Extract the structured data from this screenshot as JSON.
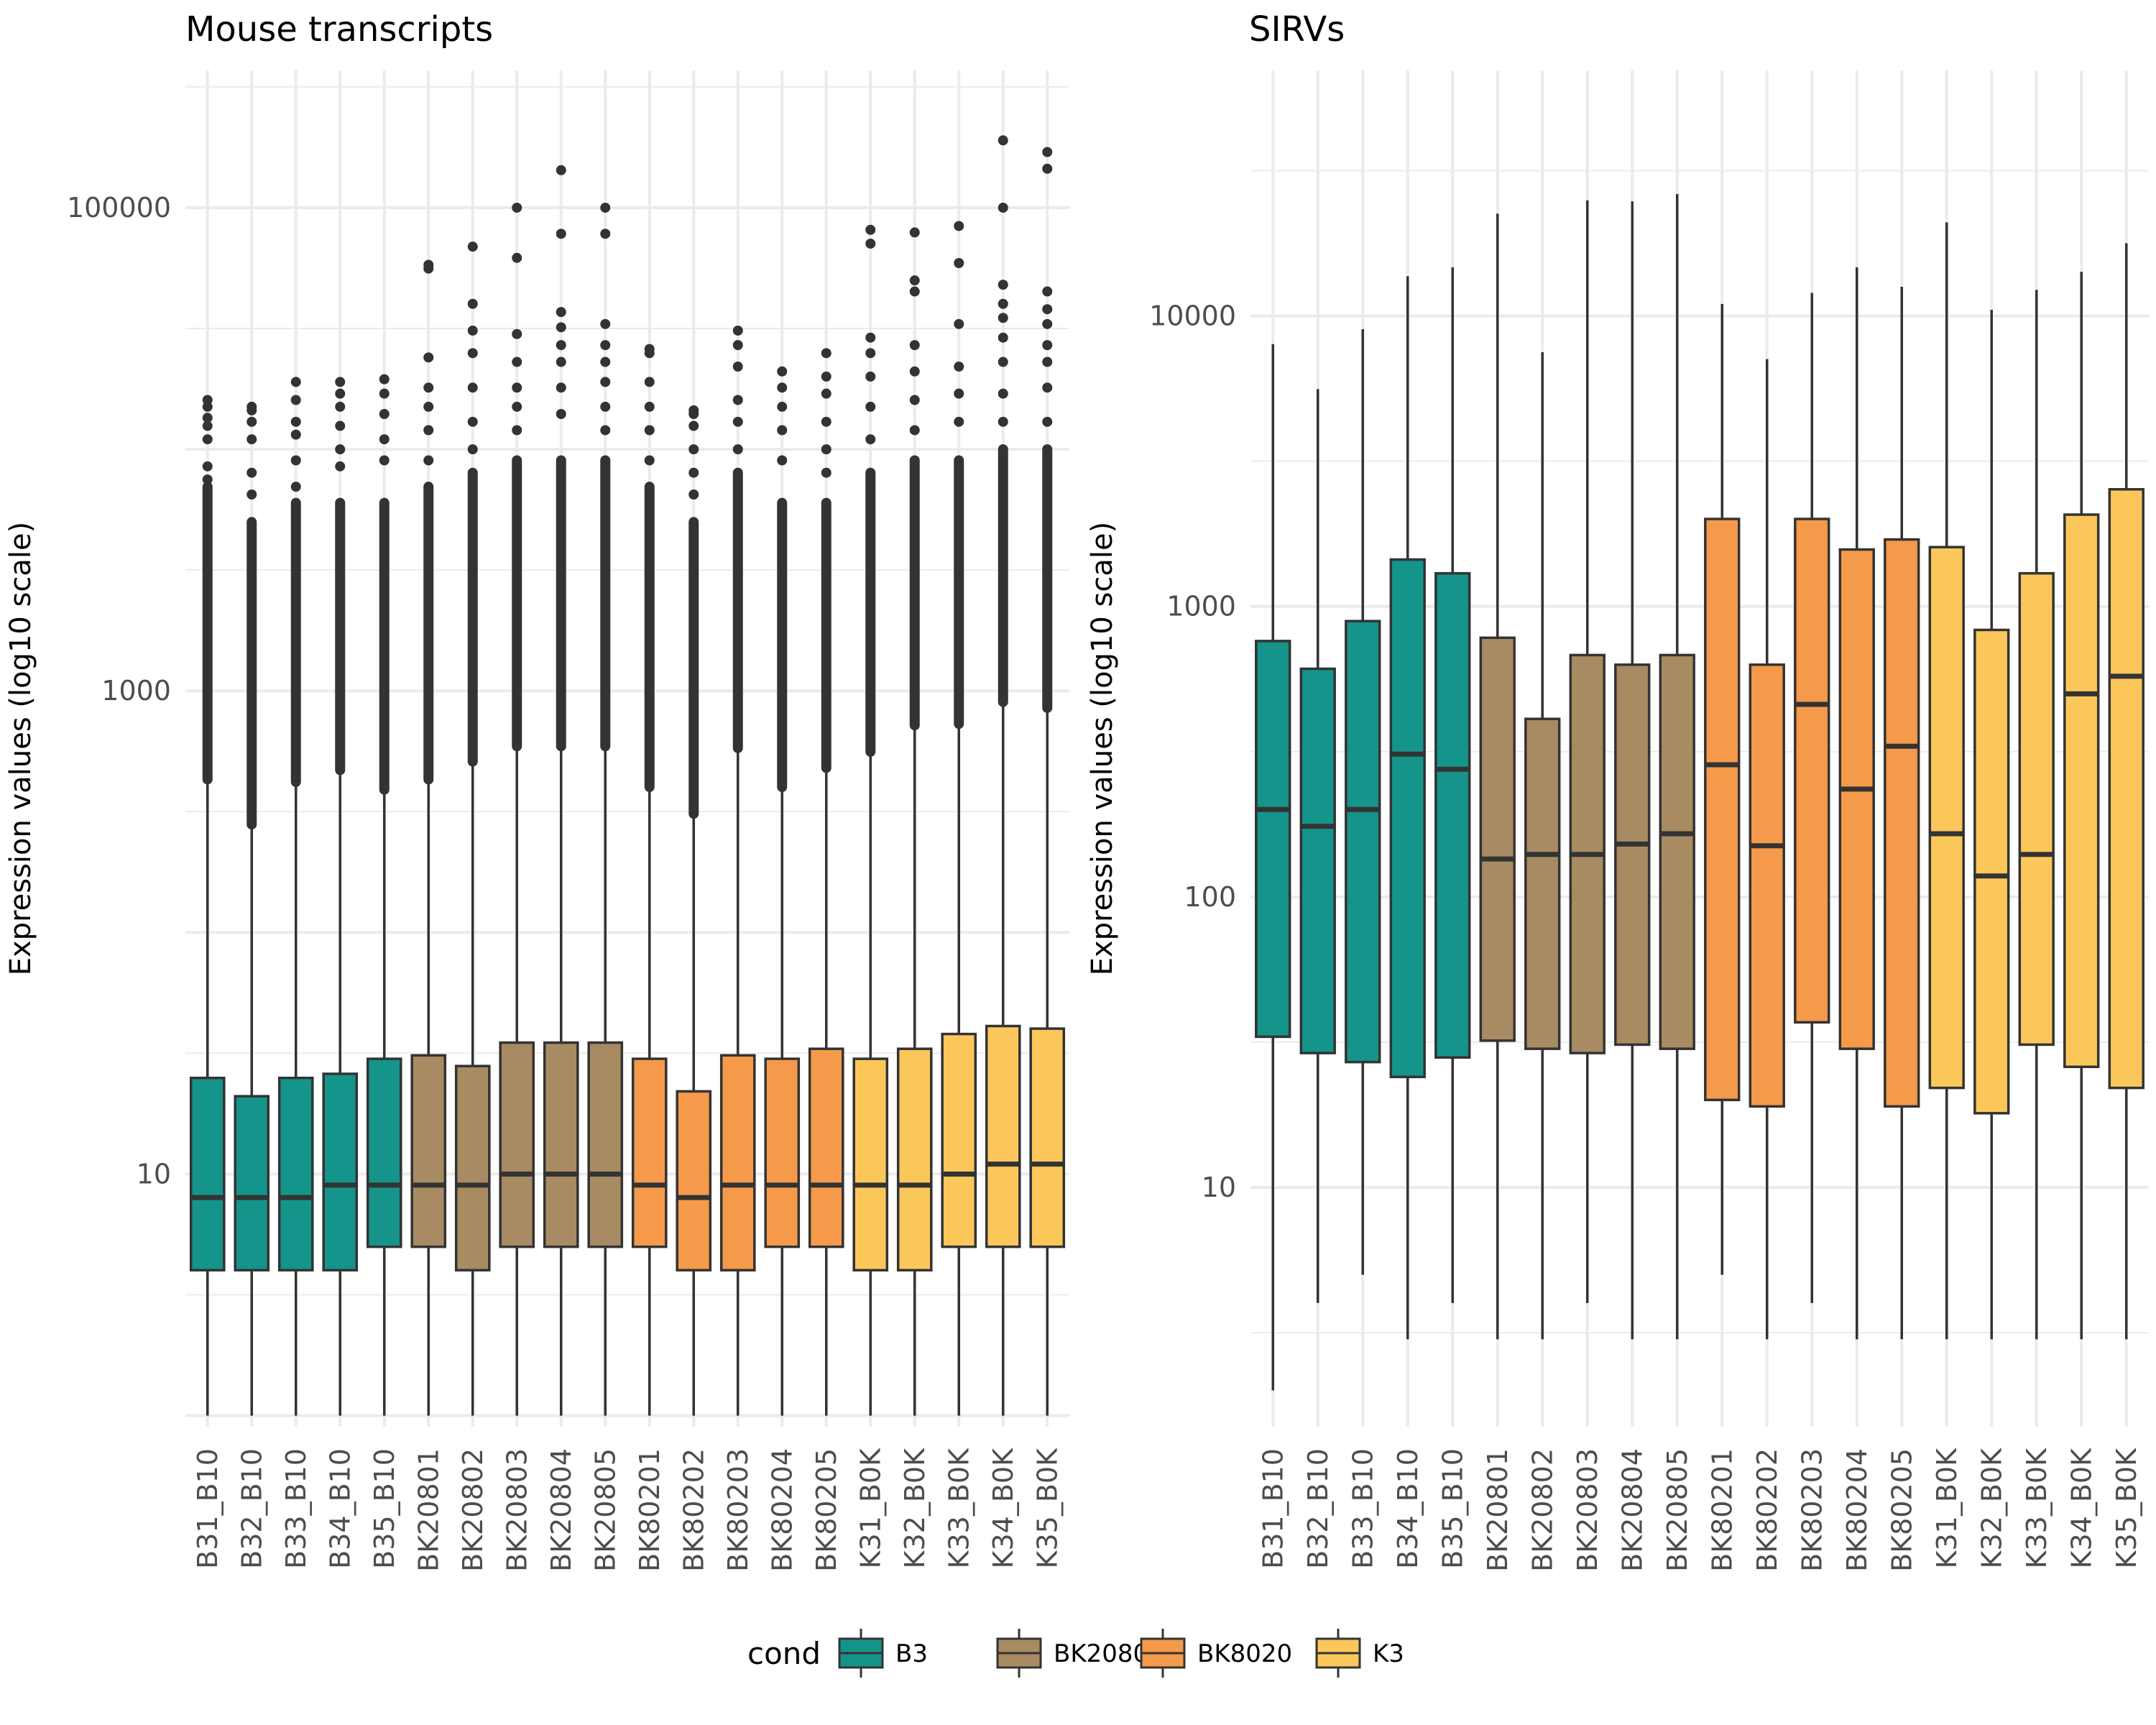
{
  "chart_data": [
    {
      "type": "boxplot",
      "title": "Mouse transcripts",
      "ylabel": "Expression values (log10 scale)",
      "yscale": "log10",
      "ylim": [
        0.9,
        370000
      ],
      "yticks": [
        10,
        1000,
        100000
      ],
      "ytick_labels": [
        "10",
        "1000",
        "100000"
      ],
      "grid": true,
      "categories": [
        "B31_B10",
        "B32_B10",
        "B33_B10",
        "B34_B10",
        "B35_B10",
        "BK20801",
        "BK20802",
        "BK20803",
        "BK20804",
        "BK20805",
        "BK80201",
        "BK80202",
        "BK80203",
        "BK80204",
        "BK80205",
        "K31_B0K",
        "K32_B0K",
        "K33_B0K",
        "K34_B0K",
        "K35_B0K"
      ],
      "groups": [
        "B3",
        "B3",
        "B3",
        "B3",
        "B3",
        "BK2080",
        "BK2080",
        "BK2080",
        "BK2080",
        "BK2080",
        "BK8020",
        "BK8020",
        "BK8020",
        "BK8020",
        "BK8020",
        "K3",
        "K3",
        "K3",
        "K3",
        "K3"
      ],
      "boxes": [
        {
          "low": 1,
          "q1": 4,
          "median": 8,
          "q3": 25,
          "high": 430,
          "dense_to": 7000,
          "outliers": [
            7500,
            8500,
            11000,
            12500,
            13500,
            15000,
            16000
          ]
        },
        {
          "low": 1,
          "q1": 4,
          "median": 8,
          "q3": 21,
          "high": 280,
          "dense_to": 5000,
          "outliers": [
            6500,
            8000,
            11000,
            13000,
            14500,
            15000
          ]
        },
        {
          "low": 1,
          "q1": 4,
          "median": 8,
          "q3": 25,
          "high": 420,
          "dense_to": 6000,
          "outliers": [
            7000,
            9000,
            11500,
            13000,
            16000,
            19000
          ]
        },
        {
          "low": 1,
          "q1": 4,
          "median": 9,
          "q3": 26,
          "high": 470,
          "dense_to": 6000,
          "outliers": [
            8500,
            10000,
            12500,
            15000,
            17000,
            19000
          ]
        },
        {
          "low": 1,
          "q1": 5,
          "median": 9,
          "q3": 30,
          "high": 390,
          "dense_to": 6000,
          "outliers": [
            9000,
            11000,
            14000,
            17000,
            19500
          ]
        },
        {
          "low": 1,
          "q1": 5,
          "median": 9,
          "q3": 31,
          "high": 430,
          "dense_to": 7000,
          "outliers": [
            9000,
            12000,
            15000,
            18000,
            24000,
            56000,
            58000
          ]
        },
        {
          "low": 1,
          "q1": 4,
          "median": 9,
          "q3": 28,
          "high": 510,
          "dense_to": 8000,
          "outliers": [
            10000,
            13000,
            18000,
            25000,
            31000,
            40000,
            69000
          ]
        },
        {
          "low": 1,
          "q1": 5,
          "median": 10,
          "q3": 35,
          "high": 590,
          "dense_to": 9000,
          "outliers": [
            12000,
            15000,
            18000,
            23000,
            30000,
            62000,
            100000
          ]
        },
        {
          "low": 1,
          "q1": 5,
          "median": 10,
          "q3": 35,
          "high": 590,
          "dense_to": 9000,
          "outliers": [
            14000,
            18000,
            23000,
            27000,
            32000,
            37000,
            78000,
            143000
          ]
        },
        {
          "low": 1,
          "q1": 5,
          "median": 10,
          "q3": 35,
          "high": 590,
          "dense_to": 9000,
          "outliers": [
            12000,
            15000,
            19000,
            23000,
            27000,
            33000,
            78000,
            100000
          ]
        },
        {
          "low": 1,
          "q1": 5,
          "median": 9,
          "q3": 30,
          "high": 400,
          "dense_to": 7000,
          "outliers": [
            9000,
            12000,
            15000,
            19000,
            25000,
            26000
          ]
        },
        {
          "low": 1,
          "q1": 4,
          "median": 8,
          "q3": 22,
          "high": 310,
          "dense_to": 5000,
          "outliers": [
            6500,
            8000,
            10000,
            12500,
            14000,
            14500
          ]
        },
        {
          "low": 1,
          "q1": 4,
          "median": 9,
          "q3": 31,
          "high": 580,
          "dense_to": 8000,
          "outliers": [
            10000,
            13000,
            16000,
            22000,
            27000,
            31000
          ]
        },
        {
          "low": 1,
          "q1": 5,
          "median": 9,
          "q3": 30,
          "high": 400,
          "dense_to": 6000,
          "outliers": [
            9000,
            12000,
            15000,
            18000,
            21000
          ]
        },
        {
          "low": 1,
          "q1": 5,
          "median": 9,
          "q3": 33,
          "high": 480,
          "dense_to": 6000,
          "outliers": [
            8000,
            10000,
            13000,
            17000,
            20000,
            25000
          ]
        },
        {
          "low": 1,
          "q1": 4,
          "median": 9,
          "q3": 30,
          "high": 560,
          "dense_to": 8000,
          "outliers": [
            11000,
            15000,
            20000,
            25000,
            29000,
            71000,
            81000
          ]
        },
        {
          "low": 1,
          "q1": 4,
          "median": 9,
          "q3": 33,
          "high": 720,
          "dense_to": 9000,
          "outliers": [
            12000,
            16000,
            21000,
            27000,
            45000,
            50000,
            79000
          ]
        },
        {
          "low": 1,
          "q1": 5,
          "median": 10,
          "q3": 38,
          "high": 730,
          "dense_to": 9000,
          "outliers": [
            13000,
            17000,
            22000,
            33000,
            59000,
            84000
          ]
        },
        {
          "low": 1,
          "q1": 5,
          "median": 11,
          "q3": 41,
          "high": 900,
          "dense_to": 10000,
          "outliers": [
            13000,
            17000,
            23000,
            29000,
            35000,
            40000,
            48000,
            100000,
            190000
          ]
        },
        {
          "low": 1,
          "q1": 5,
          "median": 11,
          "q3": 40,
          "high": 850,
          "dense_to": 10000,
          "outliers": [
            13000,
            18000,
            23000,
            27000,
            33000,
            38000,
            45000,
            145000,
            170000
          ]
        }
      ]
    },
    {
      "type": "boxplot",
      "title": "SIRVs",
      "ylabel": "Expression values (log10 scale)",
      "yscale": "log10",
      "ylim": [
        1.5,
        70000
      ],
      "yticks": [
        10,
        100,
        1000,
        10000
      ],
      "ytick_labels": [
        "10",
        "100",
        "1000",
        "10000"
      ],
      "grid": true,
      "categories": [
        "B31_B10",
        "B32_B10",
        "B33_B10",
        "B34_B10",
        "B35_B10",
        "BK20801",
        "BK20802",
        "BK20803",
        "BK20804",
        "BK20805",
        "BK80201",
        "BK80202",
        "BK80203",
        "BK80204",
        "BK80205",
        "K31_B0K",
        "K32_B0K",
        "K33_B0K",
        "K34_B0K",
        "K35_B0K"
      ],
      "groups": [
        "B3",
        "B3",
        "B3",
        "B3",
        "B3",
        "BK2080",
        "BK2080",
        "BK2080",
        "BK2080",
        "BK2080",
        "BK8020",
        "BK8020",
        "BK8020",
        "BK8020",
        "BK8020",
        "K3",
        "K3",
        "K3",
        "K3",
        "K3"
      ],
      "boxes": [
        {
          "low": 2,
          "q1": 33,
          "median": 200,
          "q3": 760,
          "high": 8000
        },
        {
          "low": 4,
          "q1": 29,
          "median": 175,
          "q3": 610,
          "high": 5600
        },
        {
          "low": 5,
          "q1": 27,
          "median": 200,
          "q3": 890,
          "high": 9000
        },
        {
          "low": 3,
          "q1": 24,
          "median": 310,
          "q3": 1450,
          "high": 13700
        },
        {
          "low": 4,
          "q1": 28,
          "median": 275,
          "q3": 1300,
          "high": 14700
        },
        {
          "low": 3,
          "q1": 32,
          "median": 135,
          "q3": 780,
          "high": 22500
        },
        {
          "low": 3,
          "q1": 30,
          "median": 140,
          "q3": 410,
          "high": 7500
        },
        {
          "low": 4,
          "q1": 29,
          "median": 140,
          "q3": 680,
          "high": 25000
        },
        {
          "low": 3,
          "q1": 31,
          "median": 152,
          "q3": 630,
          "high": 24800
        },
        {
          "low": 3,
          "q1": 30,
          "median": 165,
          "q3": 680,
          "high": 26300
        },
        {
          "low": 5,
          "q1": 20,
          "median": 285,
          "q3": 2000,
          "high": 11000
        },
        {
          "low": 3,
          "q1": 19,
          "median": 150,
          "q3": 630,
          "high": 7100
        },
        {
          "low": 4,
          "q1": 37,
          "median": 460,
          "q3": 2000,
          "high": 12000
        },
        {
          "low": 3,
          "q1": 30,
          "median": 235,
          "q3": 1570,
          "high": 14700
        },
        {
          "low": 3,
          "q1": 19,
          "median": 330,
          "q3": 1700,
          "high": 12600
        },
        {
          "low": 3,
          "q1": 22,
          "median": 165,
          "q3": 1600,
          "high": 21000
        },
        {
          "low": 3,
          "q1": 18,
          "median": 118,
          "q3": 830,
          "high": 10500
        },
        {
          "low": 3,
          "q1": 31,
          "median": 140,
          "q3": 1300,
          "high": 12300
        },
        {
          "low": 3,
          "q1": 26,
          "median": 500,
          "q3": 2070,
          "high": 14200
        },
        {
          "low": 3,
          "q1": 22,
          "median": 575,
          "q3": 2530,
          "high": 17800
        }
      ]
    }
  ],
  "legend": {
    "title": "cond",
    "placement": "bottom",
    "items": [
      {
        "label": "B3",
        "color": "#14948a"
      },
      {
        "label": "BK2080",
        "color": "#a88b62"
      },
      {
        "label": "BK8020",
        "color": "#f59a4a"
      },
      {
        "label": "K3",
        "color": "#fbc75a"
      }
    ]
  },
  "colors": {
    "B3": "#14948a",
    "BK2080": "#a88b62",
    "BK8020": "#f59a4a",
    "K3": "#fbc75a",
    "line": "#333333",
    "grid": "#ebebeb"
  }
}
